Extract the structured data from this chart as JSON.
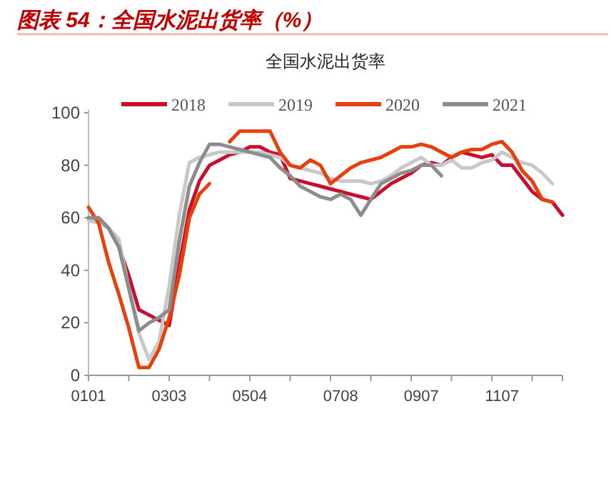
{
  "chart_data": {
    "type": "line",
    "title": "图表 54：全国水泥出货率（%）",
    "subtitle": "全国水泥出货率",
    "categories": [
      "0101",
      null,
      null,
      null,
      null,
      null,
      null,
      null,
      "0303",
      null,
      null,
      null,
      null,
      null,
      null,
      null,
      "0504",
      null,
      null,
      null,
      null,
      null,
      null,
      null,
      null,
      "0708",
      null,
      null,
      null,
      null,
      null,
      null,
      null,
      "0907",
      null,
      null,
      null,
      null,
      null,
      null,
      null,
      "1107",
      null,
      null,
      null,
      null,
      null,
      null
    ],
    "ylim": [
      0,
      100
    ],
    "yticks": [
      0,
      20,
      40,
      60,
      80,
      100
    ],
    "legend": "top",
    "series": [
      {
        "name": "2018",
        "color": "#c8102e",
        "values": [
          60,
          60,
          56,
          49,
          38,
          25,
          23,
          21,
          19,
          42,
          63,
          74,
          80,
          82,
          84,
          85,
          87,
          87,
          85,
          84,
          75,
          74,
          73,
          72,
          71,
          70,
          69,
          68,
          67,
          70,
          73,
          75,
          77,
          80,
          81,
          80,
          83,
          85,
          84,
          83,
          84,
          80,
          80,
          75,
          70,
          67,
          66,
          61
        ]
      },
      {
        "name": "2019",
        "color": "#c8c8c8",
        "values": [
          59,
          58,
          56,
          52,
          33,
          16,
          6,
          13,
          34,
          61,
          81,
          83,
          84,
          85,
          85,
          85,
          85,
          85,
          84,
          83,
          80,
          79,
          78,
          77,
          75,
          74,
          74,
          74,
          73,
          74,
          76,
          79,
          81,
          83,
          80,
          80,
          82,
          79,
          79,
          81,
          82,
          85,
          83,
          81,
          80,
          77,
          73,
          null
        ]
      },
      {
        "name": "2020",
        "color": "#e8400c",
        "values": [
          64,
          58,
          43,
          31,
          18,
          3,
          3,
          10,
          22,
          38,
          60,
          69,
          73,
          null,
          89,
          93,
          93,
          93,
          93,
          85,
          80,
          79,
          82,
          80,
          73,
          76,
          79,
          81,
          82,
          83,
          85,
          87,
          87,
          88,
          87,
          85,
          83,
          85,
          86,
          86,
          88,
          89,
          85,
          78,
          74,
          67,
          66,
          null
        ]
      },
      {
        "name": "2021",
        "color": "#8c8c8c",
        "values": [
          60,
          60,
          56,
          49,
          33,
          17,
          20,
          22,
          25,
          51,
          72,
          81,
          88,
          88,
          87,
          86,
          85,
          84,
          83,
          79,
          76,
          72,
          70,
          68,
          67,
          69,
          67,
          61,
          67,
          73,
          75,
          77,
          78,
          80,
          80,
          76,
          null,
          null,
          null,
          null,
          null,
          null,
          null,
          null,
          null,
          null,
          null,
          null
        ]
      }
    ]
  }
}
